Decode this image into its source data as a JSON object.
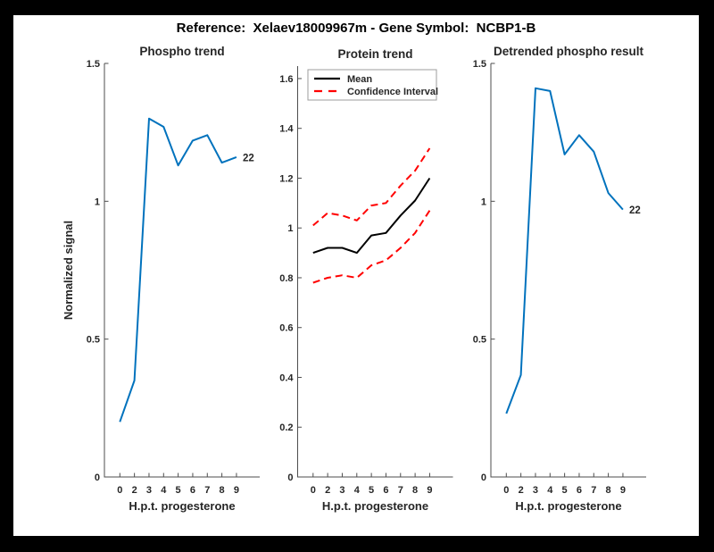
{
  "figure": {
    "title": "Reference:  Xelaev18009967m - Gene Symbol:  NCBP1-B",
    "background_color": "#000000",
    "canvas_color": "#ffffff",
    "axis_line_color": "#4d4d4d",
    "tick_text_color": "#262626"
  },
  "chart_data": [
    {
      "type": "line",
      "title": "Phospho trend",
      "xlabel": "H.p.t. progesterone",
      "ylabel": "Normalized signal",
      "x_tick_labels": [
        "0",
        "2",
        "3",
        "4",
        "5",
        "6",
        "7",
        "8",
        "9"
      ],
      "ylim": [
        0,
        1.5
      ],
      "yticks": [
        0,
        0.5,
        1,
        1.5
      ],
      "ytick_labels": [
        "0",
        "0.5",
        "1",
        "1.5"
      ],
      "grid": false,
      "series": [
        {
          "name": "phospho-signal",
          "color": "#0072BD",
          "style": "solid",
          "values": [
            0.2,
            0.35,
            1.3,
            1.27,
            1.13,
            1.22,
            1.24,
            1.14,
            1.16
          ]
        }
      ],
      "end_label": "22"
    },
    {
      "type": "line",
      "title": "Protein trend",
      "xlabel": "H.p.t. progesterone",
      "ylabel": "",
      "x_tick_labels": [
        "0",
        "2",
        "3",
        "4",
        "5",
        "6",
        "7",
        "8",
        "9"
      ],
      "ylim": [
        0,
        1.65
      ],
      "yticks": [
        0,
        0.2,
        0.4,
        0.6,
        0.8,
        1,
        1.2,
        1.4,
        1.6
      ],
      "ytick_labels": [
        "0",
        "0.2",
        "0.4",
        "0.6",
        "0.8",
        "1",
        "1.2",
        "1.4",
        "1.6"
      ],
      "grid": false,
      "series": [
        {
          "name": "mean",
          "color": "#000000",
          "style": "solid",
          "values": [
            0.9,
            0.92,
            0.92,
            0.9,
            0.97,
            0.98,
            1.05,
            1.11,
            1.2
          ]
        },
        {
          "name": "confidence-interval-upper",
          "color": "#FF0000",
          "style": "dashed",
          "values": [
            1.01,
            1.06,
            1.05,
            1.03,
            1.09,
            1.1,
            1.17,
            1.23,
            1.32
          ]
        },
        {
          "name": "confidence-interval-lower",
          "color": "#FF0000",
          "style": "dashed",
          "values": [
            0.78,
            0.8,
            0.81,
            0.8,
            0.85,
            0.87,
            0.92,
            0.98,
            1.07
          ]
        }
      ],
      "legend": {
        "position": "top-left",
        "entries": [
          {
            "label": "Mean",
            "color": "#000000",
            "style": "solid"
          },
          {
            "label": "Confidence Interval",
            "color": "#FF0000",
            "style": "dashed"
          }
        ]
      }
    },
    {
      "type": "line",
      "title": "Detrended phospho result",
      "xlabel": "H.p.t. progesterone",
      "ylabel": "",
      "x_tick_labels": [
        "0",
        "2",
        "3",
        "4",
        "5",
        "6",
        "7",
        "8",
        "9"
      ],
      "ylim": [
        0,
        1.5
      ],
      "yticks": [
        0,
        0.5,
        1,
        1.5
      ],
      "ytick_labels": [
        "0",
        "0.5",
        "1",
        "1.5"
      ],
      "grid": false,
      "series": [
        {
          "name": "detrended-phospho-signal",
          "color": "#0072BD",
          "style": "solid",
          "values": [
            0.23,
            0.37,
            1.41,
            1.4,
            1.17,
            1.24,
            1.18,
            1.03,
            0.97
          ]
        }
      ],
      "end_label": "22"
    }
  ]
}
